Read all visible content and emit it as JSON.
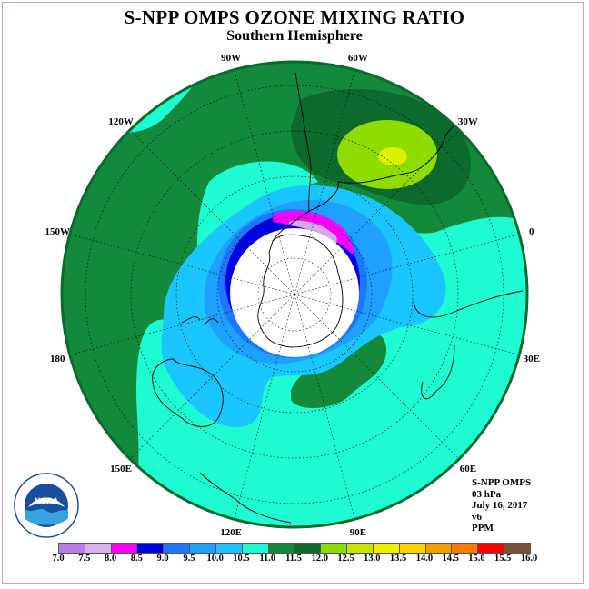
{
  "header": {
    "title": "S-NPP OMPS OZONE MIXING RATIO",
    "subtitle": "Southern Hemisphere"
  },
  "map": {
    "projection": "south-polar-stereographic",
    "longitude_labels": [
      {
        "lon": -90,
        "text": "90W"
      },
      {
        "lon": -60,
        "text": "60W"
      },
      {
        "lon": -30,
        "text": "30W"
      },
      {
        "lon": 0,
        "text": "0"
      },
      {
        "lon": 30,
        "text": "30E"
      },
      {
        "lon": 60,
        "text": "60E"
      },
      {
        "lon": 90,
        "text": "90E"
      },
      {
        "lon": 120,
        "text": "120E"
      },
      {
        "lon": 150,
        "text": "150E"
      },
      {
        "lon": 180,
        "text": "180"
      },
      {
        "lon": -150,
        "text": "150W"
      },
      {
        "lon": -120,
        "text": "120W"
      }
    ],
    "field_colors": {
      "background": "#1efad2",
      "dark_green_11_5": "#138a3b",
      "darker_green_12": "#0c6a2d",
      "blue_10_5": "#1ac6ff",
      "blue_10": "#1ea0ff",
      "blue_9_5": "#1e78ff",
      "blue_9": "#0000e6",
      "magenta_8_5": "#ff00ff",
      "lavender_8": "#d2aaf0",
      "yellowgreen_12_5": "#8fdc00",
      "yellow_13": "#dcf000",
      "polar_night": "#ffffff"
    }
  },
  "info": {
    "lines": [
      "S-NPP OMPS",
      "03 hPa",
      "July 16, 2017",
      "v6",
      "PPM"
    ]
  },
  "logo": {
    "text": "NOAA",
    "icon": "noaa-logo"
  },
  "colorbar": {
    "labels": [
      "7.0",
      "7.5",
      "8.0",
      "8.5",
      "9.0",
      "9.5",
      "10.0",
      "10.5",
      "11.0",
      "11.5",
      "12.0",
      "12.5",
      "13.0",
      "13.5",
      "14.0",
      "14.5",
      "15.0",
      "15.5",
      "16.0"
    ],
    "colors": [
      "#b97ce8",
      "#d9b0f0",
      "#ff00ff",
      "#0000e6",
      "#1e78ff",
      "#1ea0ff",
      "#1ec0ff",
      "#1efad2",
      "#138a3b",
      "#0c6a2d",
      "#8fdc00",
      "#c6e600",
      "#f0f000",
      "#ffd200",
      "#f0a000",
      "#ff7800",
      "#ff0000",
      "#7a5036"
    ]
  }
}
